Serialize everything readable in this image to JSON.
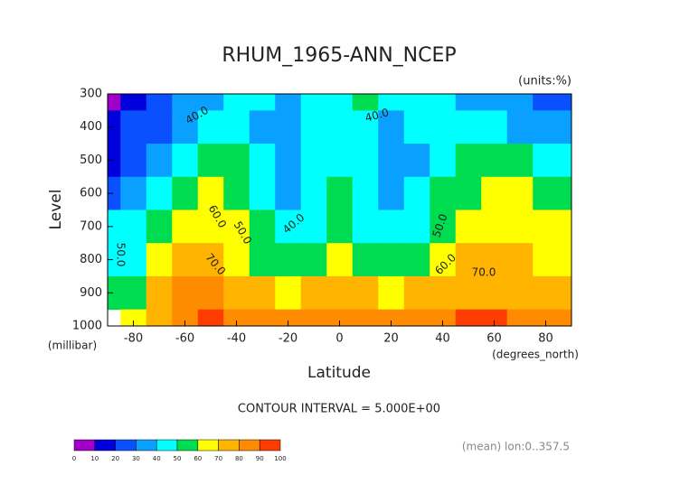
{
  "chart_data": {
    "type": "contour",
    "title": "RHUM_1965-ANN_NCEP",
    "units": "(units:%)",
    "ylabel": "Level",
    "yunit": "(millibar)",
    "xlabel": "Latitude",
    "xunit": "(degrees_north)",
    "interval_note": "CONTOUR INTERVAL = 5.000E+00",
    "footer": "(mean) lon:0..357.5",
    "x": [
      -90,
      -80,
      -70,
      -60,
      -50,
      -40,
      -30,
      -20,
      -10,
      0,
      10,
      20,
      30,
      40,
      50,
      60,
      70,
      80,
      90
    ],
    "y": [
      300,
      400,
      500,
      600,
      700,
      800,
      900,
      1000
    ],
    "z": [
      [
        5,
        15,
        22,
        30,
        38,
        42,
        40,
        38,
        42,
        48,
        52,
        48,
        42,
        42,
        38,
        35,
        32,
        28,
        22
      ],
      [
        12,
        20,
        28,
        38,
        44,
        45,
        38,
        33,
        40,
        45,
        42,
        38,
        40,
        45,
        42,
        42,
        38,
        35,
        32
      ],
      [
        18,
        28,
        38,
        47,
        55,
        50,
        40,
        32,
        40,
        45,
        40,
        33,
        38,
        48,
        52,
        55,
        52,
        48,
        46
      ],
      [
        25,
        38,
        48,
        58,
        62,
        55,
        43,
        38,
        44,
        50,
        42,
        38,
        42,
        52,
        58,
        60,
        60,
        58,
        56
      ],
      [
        45,
        40,
        58,
        68,
        66,
        60,
        50,
        43,
        48,
        55,
        48,
        42,
        47,
        58,
        63,
        66,
        65,
        62,
        62
      ],
      [
        48,
        45,
        65,
        74,
        72,
        66,
        58,
        52,
        57,
        62,
        56,
        50,
        55,
        65,
        70,
        71,
        70,
        68,
        67
      ],
      [
        50,
        55,
        72,
        82,
        80,
        75,
        70,
        68,
        72,
        75,
        70,
        66,
        70,
        75,
        78,
        78,
        76,
        74,
        72
      ],
      [
        null,
        60,
        78,
        88,
        90,
        85,
        82,
        80,
        84,
        86,
        82,
        80,
        82,
        86,
        90,
        91,
        88,
        85,
        82
      ]
    ],
    "xlim": [
      -90,
      90
    ],
    "xticks": [
      -80,
      -60,
      -40,
      -20,
      0,
      20,
      40,
      60,
      80
    ],
    "ylim": [
      1000,
      300
    ],
    "yticks": [
      300,
      400,
      500,
      600,
      700,
      800,
      900,
      1000
    ],
    "levels": [
      0,
      10,
      20,
      30,
      40,
      50,
      60,
      70,
      80,
      90,
      100
    ],
    "colors": [
      "#a000c8",
      "#0000dc",
      "#0a50ff",
      "#0aa0ff",
      "#00ffff",
      "#00dc50",
      "#ffff00",
      "#ffb400",
      "#ff8c00",
      "#ff3c00"
    ],
    "contour_labels": [
      "40.0",
      "40.0",
      "40.0",
      "50.0",
      "50.0",
      "60.0",
      "60.0",
      "70.0",
      "70.0",
      "50.0"
    ]
  }
}
